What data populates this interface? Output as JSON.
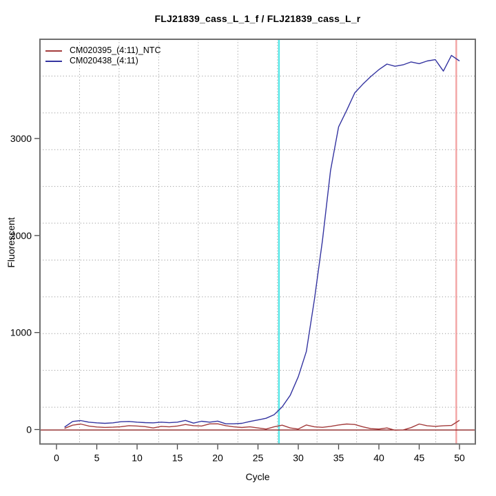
{
  "title": "FLJ21839_cass_L_1_f / FLJ21839_cass_L_r",
  "axes": {
    "x_label": "Cycle",
    "y_label": "Fluorescent"
  },
  "legend": {
    "position": "top-left"
  },
  "chart_data": {
    "type": "line",
    "title": "FLJ21839_cass_L_1_f / FLJ21839_cass_L_r",
    "xlabel": "Cycle",
    "ylabel": "Fluorescent",
    "x_ticks": [
      0,
      5,
      10,
      15,
      20,
      25,
      30,
      35,
      40,
      45,
      50
    ],
    "y_ticks": [
      0,
      1000,
      2000,
      3000
    ],
    "xlim": [
      -2,
      52
    ],
    "ylim": [
      -150,
      4020
    ],
    "grid": {
      "style": "dotted",
      "cells_x": 11,
      "cells_y": 11,
      "color": "#9a9a9a"
    },
    "x": [
      1,
      2,
      3,
      4,
      5,
      6,
      7,
      8,
      9,
      10,
      11,
      12,
      13,
      14,
      15,
      16,
      17,
      18,
      19,
      20,
      21,
      22,
      23,
      24,
      25,
      26,
      27,
      28,
      29,
      30,
      31,
      32,
      33,
      34,
      35,
      36,
      37,
      38,
      39,
      40,
      41,
      42,
      43,
      44,
      45,
      46,
      47,
      48,
      49,
      50
    ],
    "series": [
      {
        "name": "CM020395_(4:11)_NTC",
        "color": "#a33b3b",
        "values": [
          12,
          45,
          57,
          36,
          26,
          22,
          24,
          29,
          40,
          36,
          30,
          16,
          33,
          28,
          36,
          52,
          40,
          36,
          58,
          59,
          40,
          28,
          21,
          28,
          16,
          5,
          28,
          45,
          16,
          5,
          47,
          28,
          23,
          33,
          47,
          57,
          52,
          28,
          9,
          5,
          16,
          -8,
          -5,
          20,
          57,
          38,
          33,
          38,
          42,
          95
        ]
      },
      {
        "name": "CM020438_(4:11)",
        "color": "#3333a0",
        "values": [
          25,
          83,
          92,
          76,
          69,
          64,
          69,
          80,
          83,
          76,
          71,
          69,
          76,
          70,
          76,
          94,
          66,
          85,
          76,
          87,
          59,
          59,
          64,
          83,
          99,
          116,
          153,
          234,
          353,
          545,
          805,
          1340,
          1950,
          2670,
          3120,
          3290,
          3470,
          3560,
          3640,
          3710,
          3768,
          3745,
          3760,
          3790,
          3772,
          3800,
          3813,
          3695,
          3857,
          3800
        ]
      }
    ],
    "reference_lines": {
      "threshold_vline": {
        "x": 27.6,
        "color": "#53e8e8"
      },
      "end_vline": {
        "x": 49.6,
        "color": "#f2a3a3"
      },
      "zero_hline": {
        "y": 0,
        "color": "#8b2323"
      }
    }
  }
}
